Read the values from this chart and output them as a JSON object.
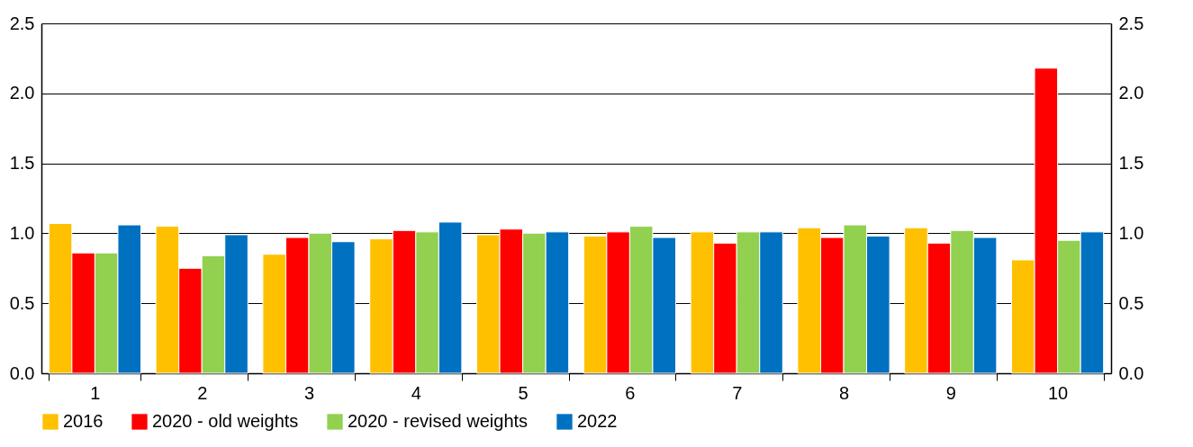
{
  "chart_data": {
    "type": "bar",
    "categories": [
      "1",
      "2",
      "3",
      "4",
      "5",
      "6",
      "7",
      "8",
      "9",
      "10"
    ],
    "series": [
      {
        "name": "2016",
        "color": "#ffc000",
        "values": [
          1.07,
          1.05,
          0.85,
          0.96,
          0.99,
          0.98,
          1.01,
          1.04,
          1.04,
          0.81
        ]
      },
      {
        "name": "2020 - old weights",
        "color": "#ff0000",
        "values": [
          0.86,
          0.75,
          0.97,
          1.02,
          1.03,
          1.01,
          0.93,
          0.97,
          0.93,
          2.18
        ]
      },
      {
        "name": "2020 - revised weights",
        "color": "#92d050",
        "values": [
          0.86,
          0.84,
          1.0,
          1.01,
          1.0,
          1.05,
          1.01,
          1.06,
          1.02,
          0.95
        ]
      },
      {
        "name": "2022",
        "color": "#0070c0",
        "values": [
          1.06,
          0.99,
          0.94,
          1.08,
          1.01,
          0.97,
          1.01,
          0.98,
          0.97,
          1.01
        ]
      }
    ],
    "ylim": [
      0,
      2.5
    ],
    "yticks": [
      {
        "value": 0,
        "label": "0.0"
      },
      0.5,
      {
        "value": 1,
        "label": "1.0"
      },
      1.5,
      {
        "value": 2,
        "label": "2.0"
      },
      2.5
    ],
    "y2lim": [
      0,
      2.5
    ],
    "y2ticks": [
      {
        "value": 0,
        "label": "0.0"
      },
      0.5,
      {
        "value": 1,
        "label": "1.0"
      },
      1.5,
      {
        "value": 2,
        "label": "2.0"
      },
      2.5
    ],
    "grid": "y",
    "legend": "bottom"
  }
}
